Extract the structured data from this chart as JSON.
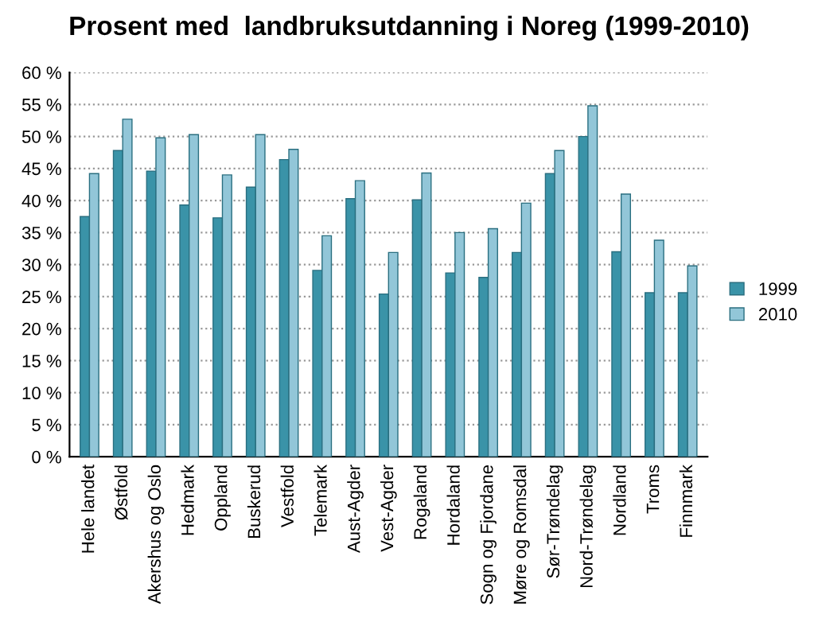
{
  "chart_data": {
    "type": "bar",
    "title": "Prosent med  landbruksutdanning i Noreg (1999-2010)",
    "categories": [
      "Hele landet",
      "Østfold",
      "Akershus og Oslo",
      "Hedmark",
      "Oppland",
      "Buskerud",
      "Vestfold",
      "Telemark",
      "Aust-Agder",
      "Vest-Agder",
      "Rogaland",
      "Hordaland",
      "Sogn og Fjordane",
      "Møre og Romsdal",
      "Sør-Trøndelag",
      "Nord-Trøndelag",
      "Nordland",
      "Troms",
      "Finnmark"
    ],
    "series": [
      {
        "name": "1999",
        "color": "#3a93a8",
        "values": [
          37.5,
          47.8,
          44.6,
          39.3,
          37.3,
          42.1,
          46.4,
          29.1,
          40.3,
          25.4,
          40.1,
          28.7,
          28.0,
          31.9,
          44.2,
          50.0,
          32.0,
          25.6,
          25.6
        ]
      },
      {
        "name": "2010",
        "color": "#92c6d8",
        "values": [
          44.2,
          52.7,
          49.8,
          50.3,
          44.0,
          50.3,
          48.0,
          34.5,
          43.1,
          31.9,
          44.3,
          35.0,
          35.6,
          39.6,
          47.8,
          54.8,
          41.0,
          33.8,
          29.8
        ]
      }
    ],
    "ylim": [
      0,
      60
    ],
    "yticks": [
      {
        "value": 0,
        "label": "0 %"
      },
      {
        "value": 5,
        "label": "5 %"
      },
      {
        "value": 10,
        "label": "10 %"
      },
      {
        "value": 15,
        "label": "15 %"
      },
      {
        "value": 20,
        "label": "20 %"
      },
      {
        "value": 25,
        "label": "25 %"
      },
      {
        "value": 30,
        "label": "30 %"
      },
      {
        "value": 35,
        "label": "35 %"
      },
      {
        "value": 40,
        "label": "40 %"
      },
      {
        "value": 45,
        "label": "45 %"
      },
      {
        "value": 50,
        "label": "50 %"
      },
      {
        "value": 55,
        "label": "55 %"
      },
      {
        "value": 60,
        "label": "60 %"
      }
    ],
    "grid": "y",
    "legend": "right"
  }
}
